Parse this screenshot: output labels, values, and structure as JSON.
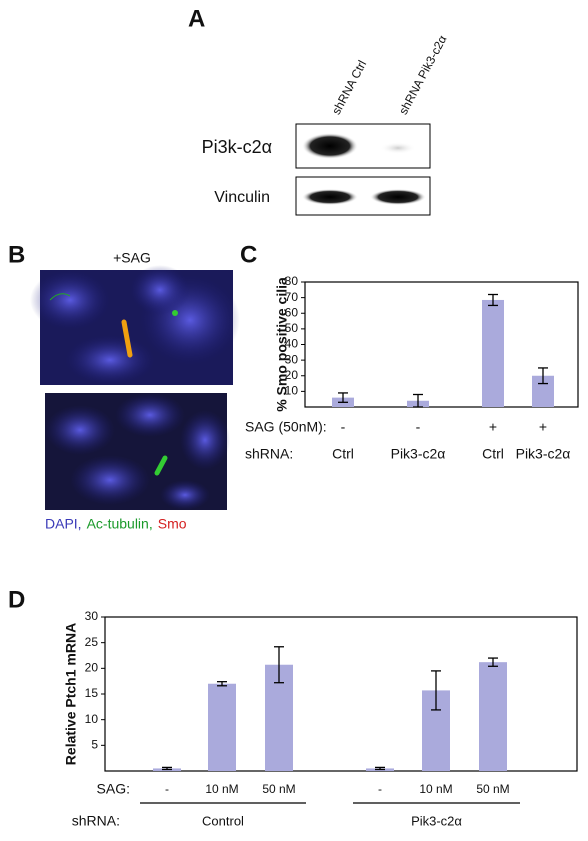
{
  "panels": {
    "a": "A",
    "b": "B",
    "c": "C",
    "d": "D"
  },
  "blot": {
    "lanes": [
      "shRNA Ctrl",
      "shRNA Pik3-c2α"
    ],
    "rows": [
      "Pi3k-c2α",
      "Vinculin"
    ]
  },
  "microscopy": {
    "title": "+SAG",
    "legend": [
      {
        "text": "DAPI,",
        "color": "#3a3ab8"
      },
      {
        "text": "Ac-tubulin,",
        "color": "#1a9a2a"
      },
      {
        "text": "Smo",
        "color": "#d42020"
      }
    ]
  },
  "chart_data": [
    {
      "type": "bar",
      "ylabel": "% Smo positive cilia",
      "color": "#aaaadc",
      "sag_label": "SAG (50nM):",
      "sag": [
        "-",
        "-",
        "+",
        "+"
      ],
      "category_label": "shRNA:",
      "categories": [
        "Ctrl",
        "Pik3-c2α",
        "Ctrl",
        "Pik3-c2α"
      ],
      "values": [
        6,
        4,
        68.5,
        20
      ],
      "errors": [
        3,
        4,
        3.5,
        5
      ],
      "ylim": [
        0,
        80
      ],
      "yticks": [
        10,
        20,
        30,
        40,
        50,
        60,
        70,
        80
      ]
    },
    {
      "type": "bar",
      "ylabel": "Relative Ptch1 mRNA",
      "color": "#aaaadc",
      "sag_label": "SAG:",
      "sag": [
        "-",
        "10 nM",
        "50 nM",
        "-",
        "10 nM",
        "50 nM"
      ],
      "group_label": "shRNA:",
      "groups": [
        "Control",
        "Pik3-c2α"
      ],
      "values": [
        0.5,
        17,
        20.7,
        0.5,
        15.7,
        21.2
      ],
      "errors": [
        0.2,
        0.4,
        3.5,
        0.2,
        3.8,
        0.8
      ],
      "ylim": [
        0,
        30
      ],
      "yticks": [
        5,
        10,
        15,
        20,
        25,
        30
      ]
    }
  ]
}
